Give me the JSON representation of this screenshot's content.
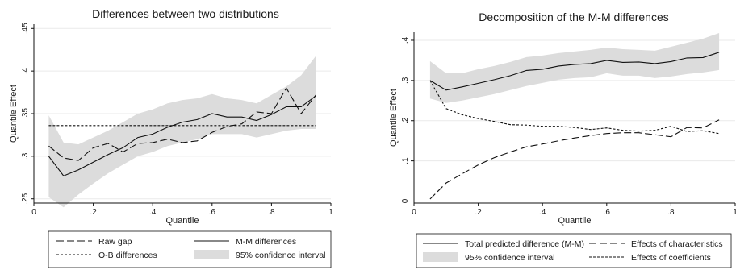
{
  "chart_data": [
    {
      "type": "line",
      "title": "Differences between two distributions",
      "xlabel": "Quantile",
      "ylabel": "Quantile Effect",
      "xlim": [
        0,
        1
      ],
      "ylim": [
        0.245,
        0.455
      ],
      "xticks": [
        0,
        0.2,
        0.4,
        0.6,
        0.8,
        1
      ],
      "xtick_labels": [
        "0",
        ".2",
        ".4",
        ".6",
        ".8",
        "1"
      ],
      "yticks": [
        0.25,
        0.3,
        0.35,
        0.4,
        0.45
      ],
      "ytick_labels": [
        ".25",
        ".3",
        ".35",
        ".4",
        ".45"
      ],
      "grid": "y",
      "legend_position": "bottom",
      "x": [
        0.05,
        0.1,
        0.15,
        0.2,
        0.25,
        0.3,
        0.35,
        0.4,
        0.45,
        0.5,
        0.55,
        0.6,
        0.65,
        0.7,
        0.75,
        0.8,
        0.85,
        0.9,
        0.95
      ],
      "band": {
        "name": "95% confidence interval",
        "color": "#dcdcdc",
        "lower": [
          0.252,
          0.24,
          0.255,
          0.268,
          0.28,
          0.29,
          0.3,
          0.305,
          0.312,
          0.316,
          0.32,
          0.326,
          0.326,
          0.326,
          0.322,
          0.326,
          0.33,
          0.332,
          0.332
        ],
        "upper": [
          0.348,
          0.316,
          0.314,
          0.322,
          0.33,
          0.34,
          0.35,
          0.355,
          0.362,
          0.366,
          0.368,
          0.373,
          0.368,
          0.366,
          0.362,
          0.372,
          0.382,
          0.395,
          0.418
        ]
      },
      "series": [
        {
          "name": "Raw gap",
          "style": "longdash",
          "values": [
            0.312,
            0.298,
            0.295,
            0.31,
            0.315,
            0.305,
            0.315,
            0.316,
            0.32,
            0.316,
            0.318,
            0.328,
            0.335,
            0.338,
            0.352,
            0.35,
            0.38,
            0.35,
            0.372
          ]
        },
        {
          "name": "M-M differences",
          "style": "solid",
          "values": [
            0.3,
            0.277,
            0.284,
            0.293,
            0.302,
            0.31,
            0.322,
            0.326,
            0.334,
            0.34,
            0.343,
            0.35,
            0.346,
            0.346,
            0.342,
            0.349,
            0.358,
            0.358,
            0.371
          ]
        },
        {
          "name": "O-B differences",
          "style": "shortdash",
          "values": [
            0.336,
            0.336,
            0.336,
            0.336,
            0.336,
            0.336,
            0.336,
            0.336,
            0.336,
            0.336,
            0.336,
            0.336,
            0.336,
            0.336,
            0.336,
            0.336,
            0.336,
            0.336,
            0.336
          ]
        }
      ],
      "legend": [
        {
          "label": "Raw gap",
          "kind": "longdash"
        },
        {
          "label": "M-M differences",
          "kind": "solid"
        },
        {
          "label": "O-B differences",
          "kind": "shortdash"
        },
        {
          "label": "95% confidence interval",
          "kind": "band"
        }
      ]
    },
    {
      "type": "line",
      "title": "Decomposition of the M-M differences",
      "xlabel": "Quantile",
      "ylabel": "Quantile Effect",
      "xlim": [
        0,
        1
      ],
      "ylim": [
        -0.005,
        0.42
      ],
      "xticks": [
        0,
        0.2,
        0.4,
        0.6,
        0.8,
        1
      ],
      "xtick_labels": [
        "0",
        ".2",
        ".4",
        ".6",
        ".8",
        "1"
      ],
      "yticks": [
        0,
        0.1,
        0.2,
        0.3,
        0.4
      ],
      "ytick_labels": [
        "0",
        ".1",
        ".2",
        ".3",
        ".4"
      ],
      "grid": "y",
      "legend_position": "bottom",
      "x": [
        0.05,
        0.1,
        0.15,
        0.2,
        0.25,
        0.3,
        0.35,
        0.4,
        0.45,
        0.5,
        0.55,
        0.6,
        0.65,
        0.7,
        0.75,
        0.8,
        0.85,
        0.9,
        0.95
      ],
      "band": {
        "name": "95% confidence interval",
        "color": "#dcdcdc",
        "lower": [
          0.255,
          0.244,
          0.25,
          0.258,
          0.266,
          0.276,
          0.286,
          0.294,
          0.302,
          0.306,
          0.308,
          0.318,
          0.312,
          0.312,
          0.306,
          0.31,
          0.316,
          0.32,
          0.326
        ],
        "upper": [
          0.348,
          0.318,
          0.318,
          0.328,
          0.336,
          0.346,
          0.358,
          0.362,
          0.368,
          0.372,
          0.376,
          0.382,
          0.378,
          0.376,
          0.374,
          0.384,
          0.394,
          0.404,
          0.418
        ]
      },
      "series": [
        {
          "name": "Total predicted difference (M-M)",
          "style": "solid",
          "values": [
            0.3,
            0.276,
            0.284,
            0.293,
            0.302,
            0.312,
            0.325,
            0.328,
            0.336,
            0.34,
            0.342,
            0.35,
            0.345,
            0.346,
            0.342,
            0.347,
            0.356,
            0.357,
            0.37
          ]
        },
        {
          "name": "Effects of characteristics",
          "style": "longdash",
          "values": [
            0.005,
            0.045,
            0.068,
            0.09,
            0.108,
            0.122,
            0.135,
            0.142,
            0.15,
            0.157,
            0.163,
            0.168,
            0.17,
            0.17,
            0.165,
            0.16,
            0.183,
            0.182,
            0.202
          ]
        },
        {
          "name": "Effects of coefficients",
          "style": "shortdash",
          "values": [
            0.3,
            0.23,
            0.215,
            0.205,
            0.198,
            0.19,
            0.189,
            0.186,
            0.186,
            0.183,
            0.178,
            0.182,
            0.176,
            0.174,
            0.176,
            0.186,
            0.173,
            0.175,
            0.168
          ]
        }
      ],
      "legend": [
        {
          "label": "Total predicted difference (M-M)",
          "kind": "solid"
        },
        {
          "label": "Effects of characteristics",
          "kind": "longdash"
        },
        {
          "label": "95% confidence interval",
          "kind": "band"
        },
        {
          "label": "Effects of coefficients",
          "kind": "shortdash"
        }
      ]
    }
  ]
}
